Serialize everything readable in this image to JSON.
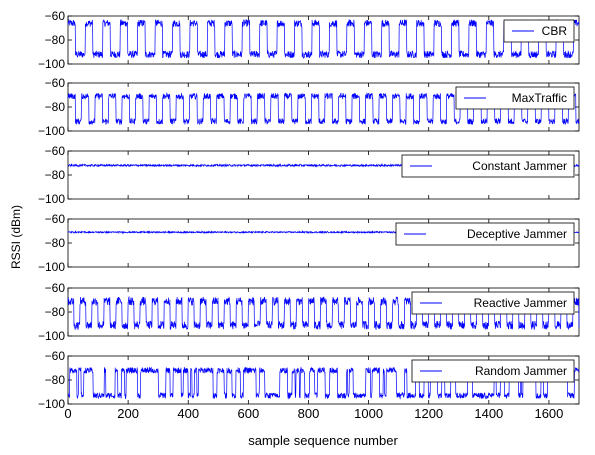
{
  "chart_data": {
    "type": "line",
    "ylabel": "RSSI (dBm)",
    "xlabel": "sample sequence number",
    "xlim": [
      0,
      1700
    ],
    "x_ticks": [
      0,
      200,
      400,
      600,
      800,
      1000,
      1200,
      1400,
      1600
    ],
    "ylim": [
      -100,
      -60
    ],
    "y_ticks": [
      -60,
      -80,
      -100
    ],
    "grid": false,
    "legend_position": "top-right",
    "line_color": "#0000ff",
    "series": [
      {
        "name": "CBR",
        "pattern": "square",
        "high": -66,
        "low": -92,
        "period": 58,
        "duty": 0.42,
        "noise": 3
      },
      {
        "name": "MaxTraffic",
        "pattern": "square",
        "high": -71,
        "low": -92,
        "period": 45,
        "duty": 0.55,
        "noise": 2.5
      },
      {
        "name": "Constant Jammer",
        "pattern": "flat",
        "level": -72,
        "noise": 0.8
      },
      {
        "name": "Deceptive Jammer",
        "pattern": "flat",
        "level": -71,
        "noise": 0.6
      },
      {
        "name": "Reactive Jammer",
        "pattern": "square",
        "high": -71,
        "low": -91,
        "period": 40,
        "duty": 0.5,
        "noise": 3.5
      },
      {
        "name": "Random Jammer",
        "pattern": "random",
        "high": -72,
        "low": -93,
        "noise": 2.5
      }
    ]
  }
}
